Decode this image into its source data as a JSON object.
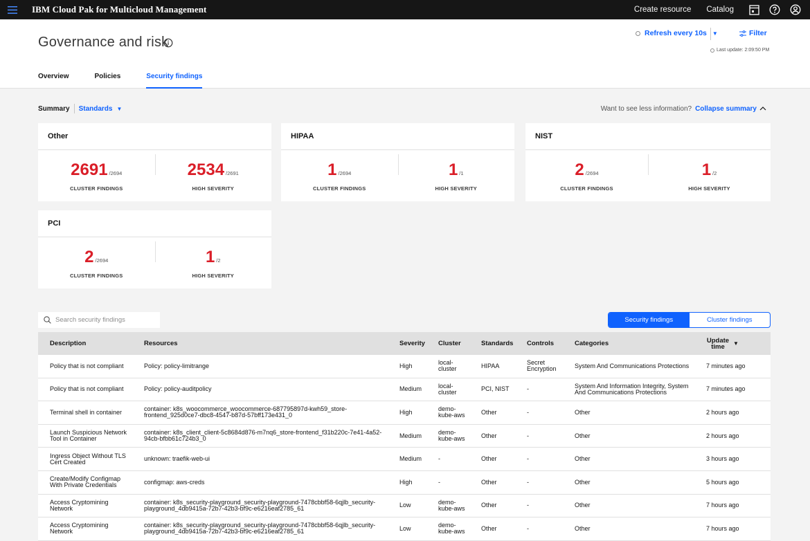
{
  "app": {
    "title": "IBM Cloud Pak for Multicloud Management"
  },
  "topbar": {
    "create_resource": "Create resource",
    "catalog": "Catalog"
  },
  "header": {
    "title": "Governance and risk",
    "refresh_label": "Refresh every 10s",
    "filter_label": "Filter",
    "last_update": "Last update:  2:09:50 PM"
  },
  "tabs": [
    {
      "label": "Overview"
    },
    {
      "label": "Policies"
    },
    {
      "label": "Security findings"
    }
  ],
  "summary": {
    "label": "Summary",
    "dropdown": "Standards",
    "less_info": "Want to see less information?",
    "collapse": "Collapse summary"
  },
  "cards": [
    {
      "title": "Other",
      "cluster_value": "2691",
      "cluster_total": "/2694",
      "high_value": "2534",
      "high_total": "/2691",
      "cluster_label": "CLUSTER FINDINGS",
      "high_label": "HIGH SEVERITY"
    },
    {
      "title": "HIPAA",
      "cluster_value": "1",
      "cluster_total": "/2694",
      "high_value": "1",
      "high_total": "/1",
      "cluster_label": "CLUSTER FINDINGS",
      "high_label": "HIGH SEVERITY"
    },
    {
      "title": "NIST",
      "cluster_value": "2",
      "cluster_total": "/2694",
      "high_value": "1",
      "high_total": "/2",
      "cluster_label": "CLUSTER FINDINGS",
      "high_label": "HIGH SEVERITY"
    },
    {
      "title": "PCI",
      "cluster_value": "2",
      "cluster_total": "/2694",
      "high_value": "1",
      "high_total": "/2",
      "cluster_label": "CLUSTER FINDINGS",
      "high_label": "HIGH SEVERITY"
    }
  ],
  "search": {
    "placeholder": "Search security findings"
  },
  "toggle": {
    "security": "Security findings",
    "cluster": "Cluster findings"
  },
  "table": {
    "headers": {
      "description": "Description",
      "resources": "Resources",
      "severity": "Severity",
      "cluster": "Cluster",
      "standards": "Standards",
      "controls": "Controls",
      "categories": "Categories",
      "update": "Update time"
    },
    "rows": [
      {
        "description": "Policy that is not compliant",
        "resources": "Policy: policy-limitrange",
        "severity": "High",
        "cluster": "local-cluster",
        "standards": "HIPAA",
        "controls": "Secret Encryption",
        "categories": "System And Communications Protections",
        "update": "7 minutes ago"
      },
      {
        "description": "Policy that is not compliant",
        "resources": "Policy: policy-auditpolicy",
        "severity": "Medium",
        "cluster": "local-cluster",
        "standards": "PCI, NIST",
        "controls": "-",
        "categories": "System And Information Integrity, System And Communications Protections",
        "update": "7 minutes ago"
      },
      {
        "description": "Terminal shell in container",
        "resources": "container: k8s_woocommerce_woocommerce-687795897d-kwh59_store-frontend_925d0ce7-dbc8-4547-b87d-57bff173e431_0",
        "severity": "High",
        "cluster": "demo-kube-aws",
        "standards": "Other",
        "controls": "-",
        "categories": "Other",
        "update": "2 hours ago"
      },
      {
        "description": "Launch Suspicious Network Tool in Container",
        "resources": "container: k8s_client_client-5c8684d876-m7nq6_store-frontend_f31b220c-7e41-4a52-94cb-bfbb61c724b3_0",
        "severity": "Medium",
        "cluster": "demo-kube-aws",
        "standards": "Other",
        "controls": "-",
        "categories": "Other",
        "update": "2 hours ago"
      },
      {
        "description": "Ingress Object Without TLS Cert Created",
        "resources": "unknown: traefik-web-ui",
        "severity": "Medium",
        "cluster": "-",
        "standards": "Other",
        "controls": "-",
        "categories": "Other",
        "update": "3 hours ago"
      },
      {
        "description": "Create/Modify Configmap With Private Credentials",
        "resources": "configmap: aws-creds",
        "severity": "High",
        "cluster": "-",
        "standards": "Other",
        "controls": "-",
        "categories": "Other",
        "update": "5 hours ago"
      },
      {
        "description": "Access Cryptomining Network",
        "resources": "container: k8s_security-playground_security-playground-7478cbbf58-6qjlb_security-playground_4db9415a-72b7-42b3-bf9c-e6216eaf2785_61",
        "severity": "Low",
        "cluster": "demo-kube-aws",
        "standards": "Other",
        "controls": "-",
        "categories": "Other",
        "update": "7 hours ago"
      },
      {
        "description": "Access Cryptomining Network",
        "resources": "container: k8s_security-playground_security-playground-7478cbbf58-6qjlb_security-playground_4db9415a-72b7-42b3-bf9c-e6216eaf2785_61",
        "severity": "Low",
        "cluster": "demo-kube-aws",
        "standards": "Other",
        "controls": "-",
        "categories": "Other",
        "update": "7 hours ago"
      }
    ]
  },
  "colors": {
    "accent": "#0f62fe",
    "danger": "#da1e28",
    "topbar": "#161616"
  },
  "icons": [
    "menu-icon",
    "info-icon",
    "notepad-icon",
    "help-icon",
    "user-icon",
    "filter-icon",
    "search-icon",
    "chevron-up-icon",
    "caret-down-icon"
  ]
}
